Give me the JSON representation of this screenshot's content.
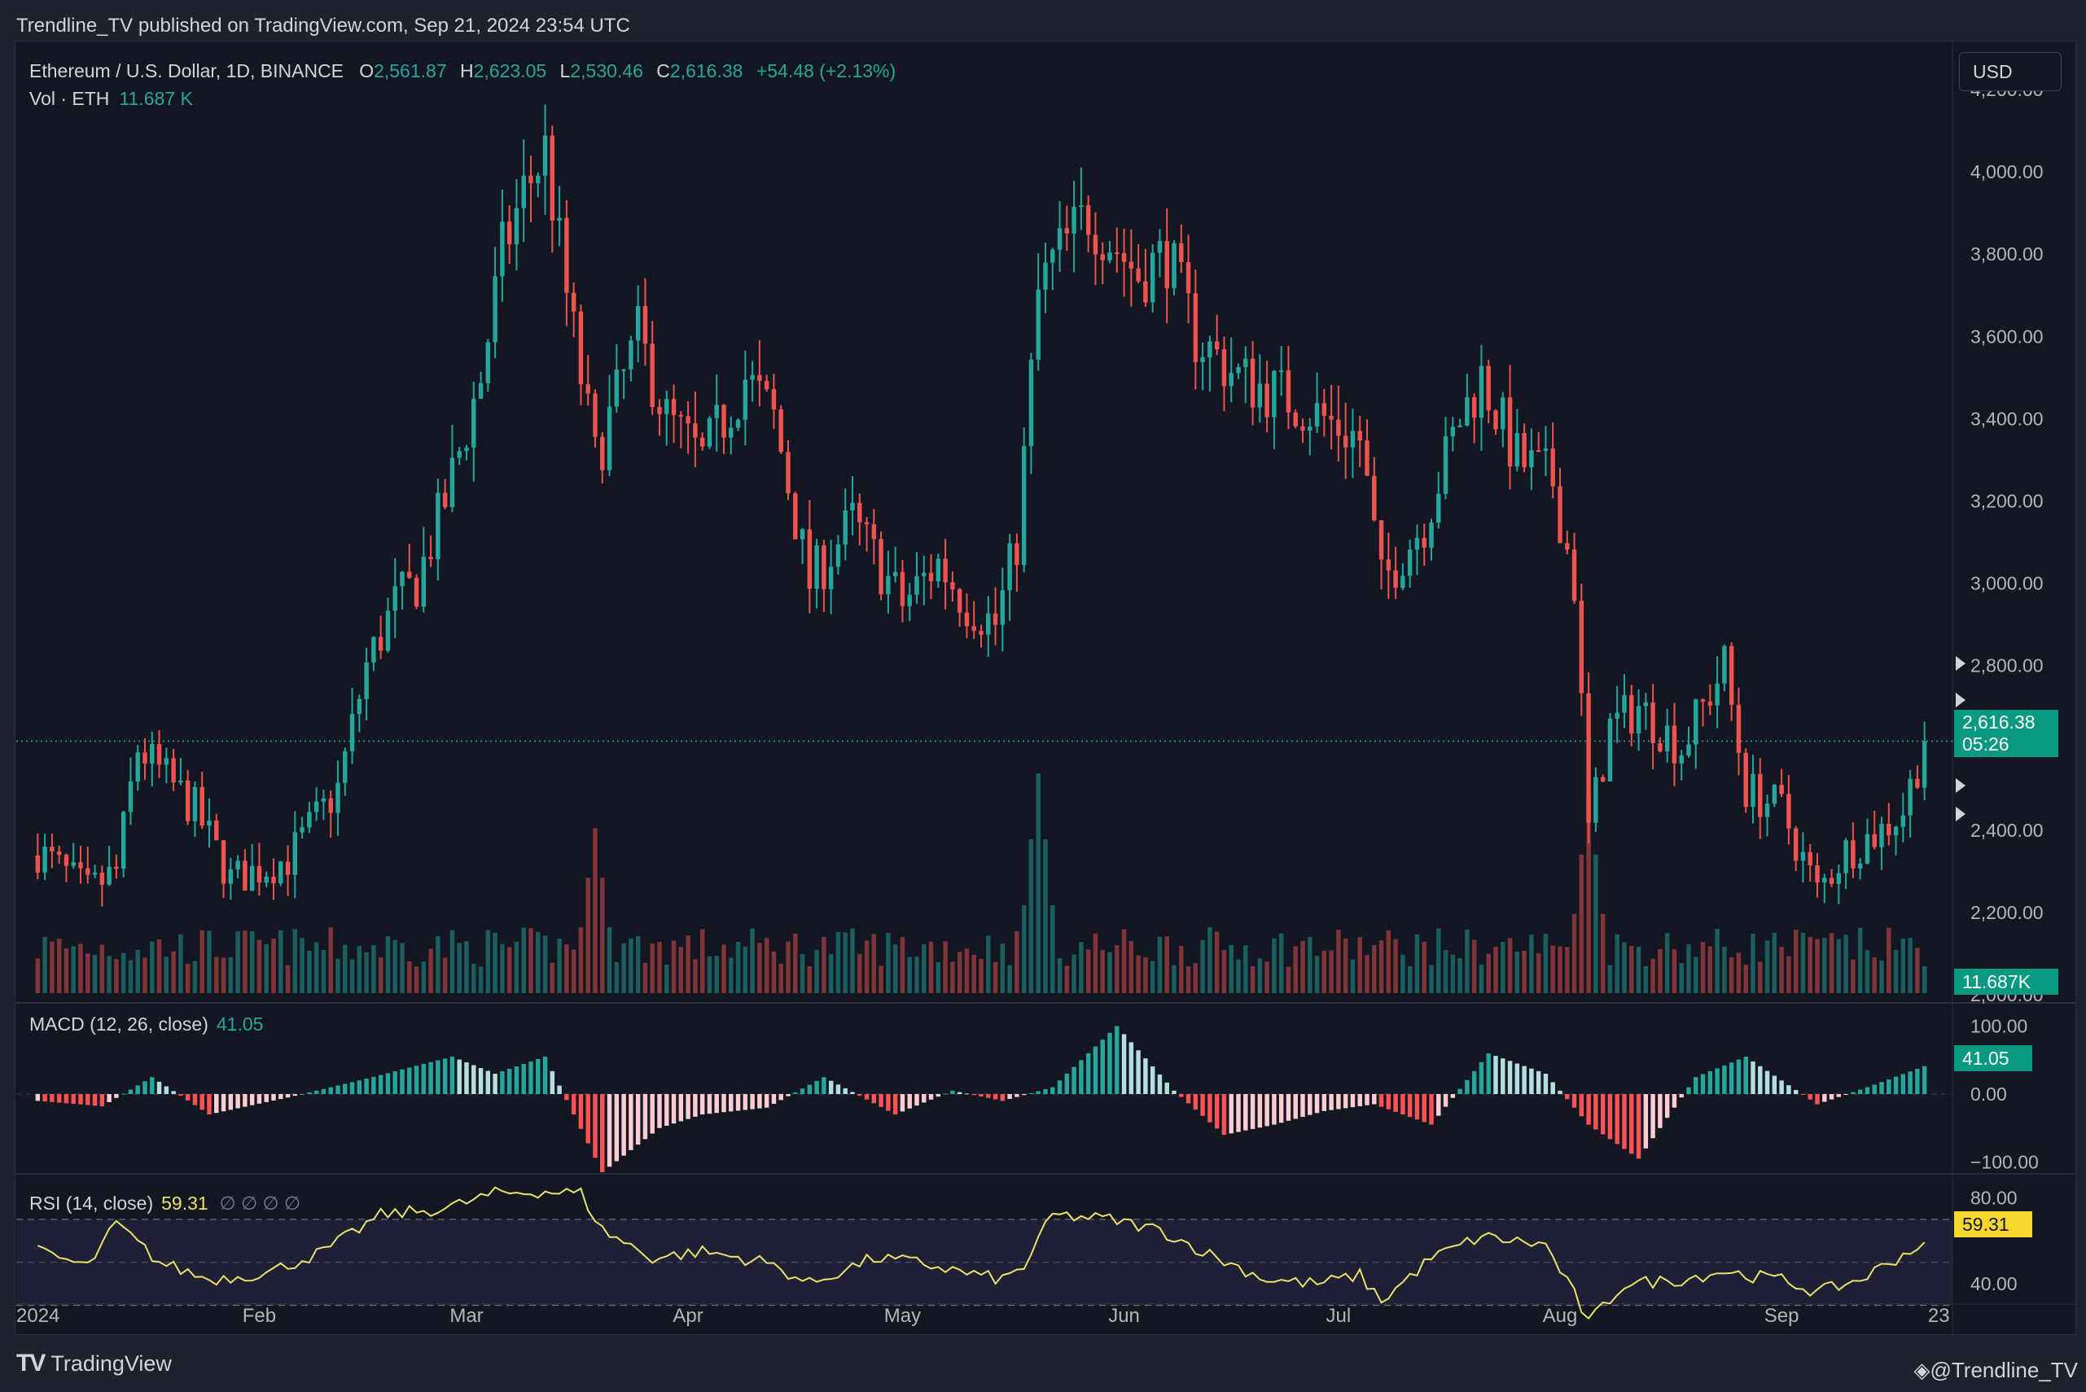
{
  "header": {
    "publisher_line": "Trendline_TV published on TradingView.com, Sep 21, 2024 23:54 UTC"
  },
  "symbol_legend": {
    "symbol": "Ethereum / U.S. Dollar, 1D, BINANCE",
    "open_label": "O",
    "open": "2,561.87",
    "high_label": "H",
    "high": "2,623.05",
    "low_label": "L",
    "low": "2,530.46",
    "close_label": "C",
    "close": "2,616.38",
    "change": "+54.48 (+2.13%)"
  },
  "volume_legend": {
    "label": "Vol · ETH",
    "value": "11.687 K"
  },
  "macd_legend": {
    "label": "MACD (12, 26, close)",
    "value": "41.05"
  },
  "rsi_legend": {
    "label": "RSI (14, close)",
    "value": "59.31",
    "na": "∅ ∅ ∅ ∅"
  },
  "currency_button": "USD",
  "tags": {
    "price": "2,616.38",
    "countdown": "05:26",
    "volume": "11.687K",
    "macd": "41.05",
    "rsi": "59.31"
  },
  "branding": {
    "logo": "TV",
    "name": "TradingView",
    "handle": "@Trendline_TV"
  },
  "colors": {
    "background": "#131722",
    "up": "#26a69a",
    "down": "#ef5350",
    "rsi_line": "#e9e26b",
    "price_tag": "#089981"
  },
  "chart_data": [
    {
      "type": "candlestick",
      "x_tick_labels": [
        "2024",
        "Feb",
        "Mar",
        "Apr",
        "May",
        "Jun",
        "Jul",
        "Aug",
        "Sep",
        "23"
      ],
      "y_tick_labels": [
        "2,000.00",
        "2,200.00",
        "2,400.00",
        "2,600.00",
        "2,800.00",
        "3,000.00",
        "3,200.00",
        "3,400.00",
        "3,600.00",
        "3,800.00",
        "4,000.00",
        "4,200.00"
      ],
      "ylim": [
        2000,
        4200
      ],
      "last_price": 2616.38,
      "control_points": {
        "dates": [
          "2024-01-01",
          "2024-01-08",
          "2024-01-12",
          "2024-01-15",
          "2024-01-23",
          "2024-01-28",
          "2024-02-05",
          "2024-02-12",
          "2024-02-16",
          "2024-02-20",
          "2024-02-23",
          "2024-02-27",
          "2024-03-03",
          "2024-03-06",
          "2024-03-09",
          "2024-03-12",
          "2024-03-15",
          "2024-03-19",
          "2024-03-22",
          "2024-03-25",
          "2024-03-29",
          "2024-04-03",
          "2024-04-09",
          "2024-04-13",
          "2024-04-18",
          "2024-04-24",
          "2024-05-01",
          "2024-05-06",
          "2024-05-10",
          "2024-05-14",
          "2024-05-17",
          "2024-05-20",
          "2024-05-22",
          "2024-05-27",
          "2024-06-03",
          "2024-06-07",
          "2024-06-11",
          "2024-06-17",
          "2024-06-24",
          "2024-06-29",
          "2024-07-04",
          "2024-07-07",
          "2024-07-13",
          "2024-07-18",
          "2024-07-21",
          "2024-07-26",
          "2024-07-31",
          "2024-08-03",
          "2024-08-05",
          "2024-08-08",
          "2024-08-12",
          "2024-08-18",
          "2024-08-24",
          "2024-08-27",
          "2024-09-01",
          "2024-09-06",
          "2024-09-10",
          "2024-09-15",
          "2024-09-18",
          "2024-09-21"
        ],
        "close": [
          2350,
          2250,
          2300,
          2600,
          2450,
          2280,
          2330,
          2500,
          2800,
          2950,
          3000,
          3200,
          3500,
          3800,
          3950,
          4050,
          3700,
          3300,
          3450,
          3600,
          3400,
          3300,
          3500,
          3400,
          3000,
          3150,
          2950,
          3050,
          2950,
          2900,
          3100,
          3700,
          3780,
          3900,
          3750,
          3800,
          3600,
          3500,
          3450,
          3400,
          3350,
          3000,
          3150,
          3400,
          3500,
          3300,
          3250,
          3000,
          2400,
          2650,
          2700,
          2600,
          2800,
          2500,
          2450,
          2250,
          2350,
          2400,
          2450,
          2616.38
        ]
      }
    },
    {
      "type": "bar",
      "name": "Vol · ETH",
      "last_value": "11.687K",
      "spikes": [
        {
          "date": "2024-03-19",
          "relative": 0.75
        },
        {
          "date": "2024-05-20",
          "relative": 1.0
        },
        {
          "date": "2024-08-05",
          "relative": 0.9
        }
      ]
    },
    {
      "type": "bar",
      "name": "MACD (12, 26, close)",
      "y_tick_labels": [
        "100.00",
        "0.00",
        "−100.00"
      ],
      "ylim": [
        -115,
        115
      ],
      "last_value": 41.05,
      "control_points": {
        "dates": [
          "2024-01-01",
          "2024-01-10",
          "2024-01-17",
          "2024-01-25",
          "2024-02-05",
          "2024-02-15",
          "2024-02-28",
          "2024-03-05",
          "2024-03-12",
          "2024-03-20",
          "2024-03-28",
          "2024-04-03",
          "2024-04-12",
          "2024-04-20",
          "2024-04-30",
          "2024-05-08",
          "2024-05-15",
          "2024-05-22",
          "2024-05-31",
          "2024-06-08",
          "2024-06-15",
          "2024-06-22",
          "2024-06-29",
          "2024-07-06",
          "2024-07-14",
          "2024-07-22",
          "2024-07-30",
          "2024-08-05",
          "2024-08-12",
          "2024-08-20",
          "2024-08-27",
          "2024-09-06",
          "2024-09-13",
          "2024-09-21"
        ],
        "values": [
          -10,
          -18,
          25,
          -30,
          -5,
          20,
          55,
          30,
          55,
          -115,
          -50,
          -30,
          -20,
          25,
          -30,
          5,
          -10,
          10,
          100,
          5,
          -60,
          -45,
          -25,
          -15,
          -45,
          60,
          30,
          -45,
          -95,
          25,
          55,
          -15,
          10,
          41.05
        ]
      }
    },
    {
      "type": "line",
      "name": "RSI (14, close)",
      "y_tick_labels": [
        "80.00",
        "40.00"
      ],
      "ylim": [
        20,
        90
      ],
      "band": [
        30,
        70
      ],
      "last_value": 59.31,
      "control_points": {
        "dates": [
          "2024-01-01",
          "2024-01-08",
          "2024-01-12",
          "2024-01-18",
          "2024-01-25",
          "2024-02-02",
          "2024-02-10",
          "2024-02-18",
          "2024-02-27",
          "2024-03-05",
          "2024-03-12",
          "2024-03-17",
          "2024-03-20",
          "2024-03-27",
          "2024-04-03",
          "2024-04-12",
          "2024-04-18",
          "2024-04-27",
          "2024-05-03",
          "2024-05-10",
          "2024-05-15",
          "2024-05-18",
          "2024-05-22",
          "2024-05-30",
          "2024-06-06",
          "2024-06-14",
          "2024-06-21",
          "2024-06-28",
          "2024-07-04",
          "2024-07-07",
          "2024-07-14",
          "2024-07-21",
          "2024-07-30",
          "2024-08-03",
          "2024-08-05",
          "2024-08-10",
          "2024-08-18",
          "2024-08-24",
          "2024-08-27",
          "2024-09-01",
          "2024-09-06",
          "2024-09-12",
          "2024-09-21"
        ],
        "values": [
          55,
          48,
          68,
          50,
          42,
          45,
          55,
          72,
          75,
          82,
          83,
          82,
          65,
          52,
          55,
          50,
          40,
          52,
          50,
          45,
          42,
          48,
          72,
          70,
          65,
          52,
          42,
          40,
          44,
          32,
          52,
          62,
          58,
          35,
          22,
          40,
          42,
          46,
          44,
          42,
          36,
          42,
          59.31
        ]
      }
    }
  ]
}
